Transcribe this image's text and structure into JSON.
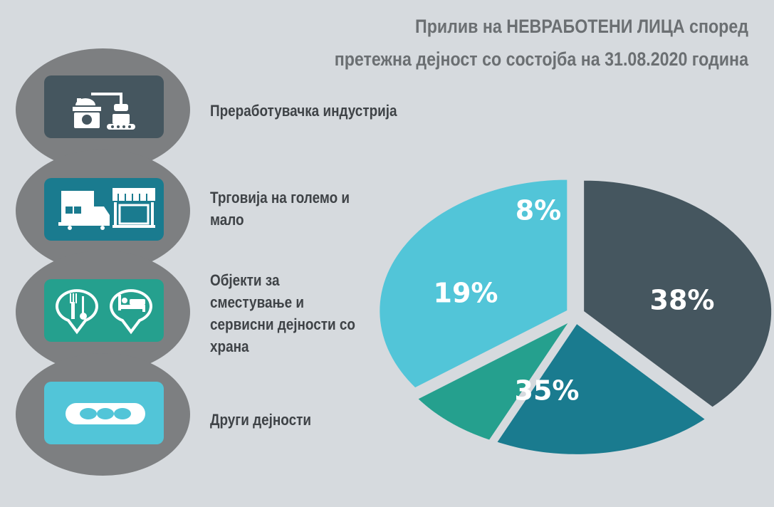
{
  "title": {
    "line1": "Прилив на НЕВРАБОТЕНИ ЛИЦА според",
    "line2": "претежна дејност со состојба на 31.08.2020 година"
  },
  "categories": [
    {
      "label_lines": [
        "Преработувачка индустрија"
      ],
      "icon": "factory-icon",
      "color": "#45565f"
    },
    {
      "label_lines": [
        "Трговија на големо и",
        "мало"
      ],
      "icon": "truck-store-icon",
      "color": "#1a7b8f"
    },
    {
      "label_lines": [
        "Објекти за",
        "сместување и",
        "сервисни дејности со",
        "храна"
      ],
      "icon": "restaurant-hotel-icon",
      "color": "#25a08e"
    },
    {
      "label_lines": [
        "Други дејности"
      ],
      "icon": "more-dots-icon",
      "color": "#52c5d8"
    }
  ],
  "chart_data": {
    "type": "pie",
    "categories": [
      "Преработувачка индустрија",
      "Трговија на големо и мало",
      "Објекти за сместување и сервисни дејности со храна",
      "Други дејности"
    ],
    "values": [
      38,
      19,
      8,
      35
    ],
    "data_labels": [
      "38%",
      "19%",
      "8%",
      "35%"
    ],
    "colors": [
      "#45565f",
      "#1a7b8f",
      "#25a08e",
      "#52c5d8"
    ]
  }
}
